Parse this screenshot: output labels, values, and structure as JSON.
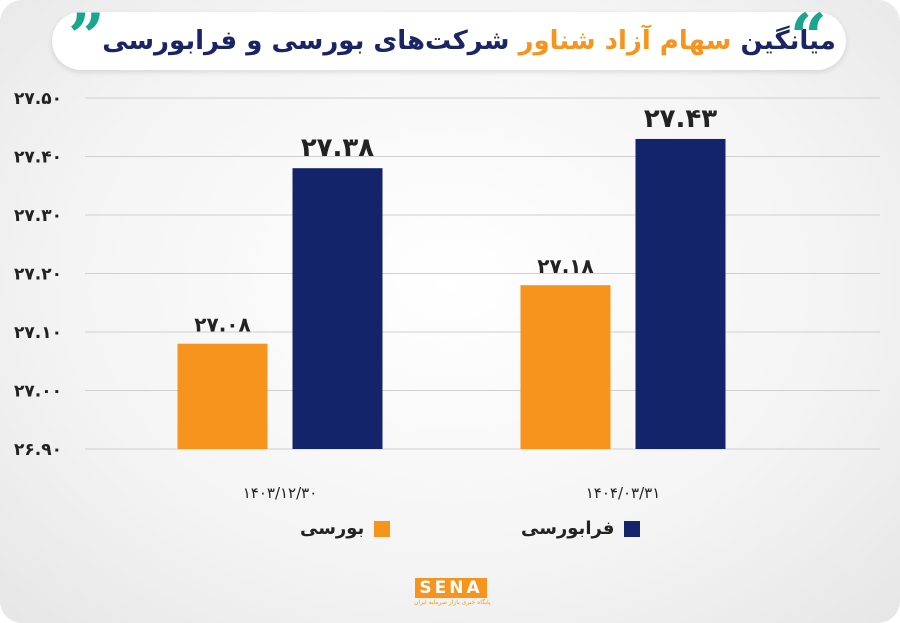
{
  "title": {
    "part1": "میانگین",
    "part2": "سهام آزاد شناور",
    "part3": "شرکت‌های بورسی و فرابورسی",
    "quote_open": "”",
    "quote_close": "“"
  },
  "legend": {
    "bourse": "بورسی",
    "farabourse": "فرابورسی"
  },
  "logo": {
    "word": "SENA",
    "subtitle": "پایگاه خبری بازار سرمایه ایران"
  },
  "colors": {
    "bourse": "#f7941d",
    "farabourse": "#14246a",
    "accent": "#1aa58f"
  },
  "chart_data": {
    "type": "bar",
    "categories": [
      "۱۴۰۳/۱۲/۳۰",
      "۱۴۰۴/۰۳/۳۱"
    ],
    "series": [
      {
        "name": "بورسی",
        "values": [
          27.08,
          27.18
        ],
        "labels": [
          "۲۷.۰۸",
          "۲۷.۱۸"
        ]
      },
      {
        "name": "فرابورسی",
        "values": [
          27.38,
          27.43
        ],
        "labels": [
          "۲۷.۳۸",
          "۲۷.۴۳"
        ]
      }
    ],
    "ylim": [
      26.9,
      27.5
    ],
    "yticks": [
      27.5,
      27.4,
      27.3,
      27.2,
      27.1,
      27.0,
      26.9
    ],
    "ytick_labels": [
      "۲۷.۵۰",
      "۲۷.۴۰",
      "۲۷.۳۰",
      "۲۷.۲۰",
      "۲۷.۱۰",
      "۲۷.۰۰",
      "۲۶.۹۰"
    ],
    "grid": true,
    "legend_position": "bottom"
  }
}
